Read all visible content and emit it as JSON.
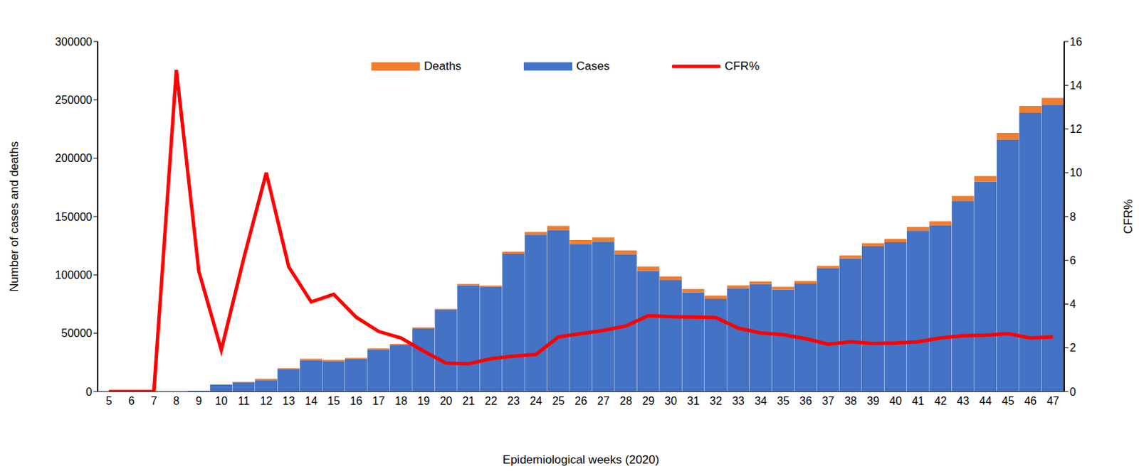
{
  "chart_data": {
    "type": "bar",
    "x_label": "Epidemiological weeks (2020)",
    "y_label": "Number of cases and deaths",
    "y2_label": "CFR%",
    "categories": [
      5,
      6,
      7,
      8,
      9,
      10,
      11,
      12,
      13,
      14,
      15,
      16,
      17,
      18,
      19,
      20,
      21,
      22,
      23,
      24,
      25,
      26,
      27,
      28,
      29,
      30,
      31,
      32,
      33,
      34,
      35,
      36,
      37,
      38,
      39,
      40,
      41,
      42,
      43,
      44,
      45,
      46,
      47
    ],
    "series": [
      {
        "name": "Deaths",
        "type": "bar",
        "color": "#ed7d31",
        "values": [
          0,
          0,
          0,
          5,
          33,
          114,
          490,
          1000,
          1080,
          1110,
          1160,
          950,
          990,
          980,
          1000,
          910,
          1160,
          1340,
          1910,
          2290,
          3460,
          3350,
          3600,
          3520,
          3590,
          3270,
          2900,
          2690,
          2570,
          2470,
          2280,
          2240,
          2290,
          2600,
          2740,
          2840,
          3150,
          3490,
          4170,
          4640,
          5720,
          5860,
          6140
        ]
      },
      {
        "name": "Cases",
        "type": "bar",
        "color": "#4472c4",
        "values": [
          0,
          0,
          0,
          34,
          600,
          6000,
          8000,
          10000,
          19000,
          27000,
          26000,
          28000,
          36000,
          40000,
          54000,
          70000,
          91000,
          89500,
          118000,
          134500,
          138500,
          126500,
          128500,
          117500,
          103500,
          95500,
          85000,
          79500,
          88500,
          92000,
          87500,
          92500,
          105500,
          114000,
          124500,
          128000,
          138000,
          142500,
          163500,
          180000,
          216000,
          239000,
          245500
        ]
      },
      {
        "name": "CFR%",
        "type": "line",
        "axis": "y2",
        "color": "#ff0000",
        "values": [
          0,
          0,
          0,
          14.7,
          5.5,
          1.9,
          6.1,
          10,
          5.7,
          4.1,
          4.45,
          3.4,
          2.75,
          2.45,
          1.85,
          1.3,
          1.27,
          1.5,
          1.62,
          1.7,
          2.5,
          2.65,
          2.8,
          3.0,
          3.47,
          3.42,
          3.41,
          3.38,
          2.9,
          2.68,
          2.6,
          2.42,
          2.17,
          2.28,
          2.2,
          2.22,
          2.28,
          2.45,
          2.55,
          2.58,
          2.65,
          2.45,
          2.5
        ]
      }
    ],
    "stacked": true,
    "ylim": [
      0,
      300000
    ],
    "yticks": [
      0,
      50000,
      100000,
      150000,
      200000,
      250000,
      300000
    ],
    "y2lim": [
      0,
      16
    ],
    "y2ticks": [
      0,
      2,
      4,
      6,
      8,
      10,
      12,
      14,
      16
    ],
    "grid": false,
    "legend": "top"
  }
}
